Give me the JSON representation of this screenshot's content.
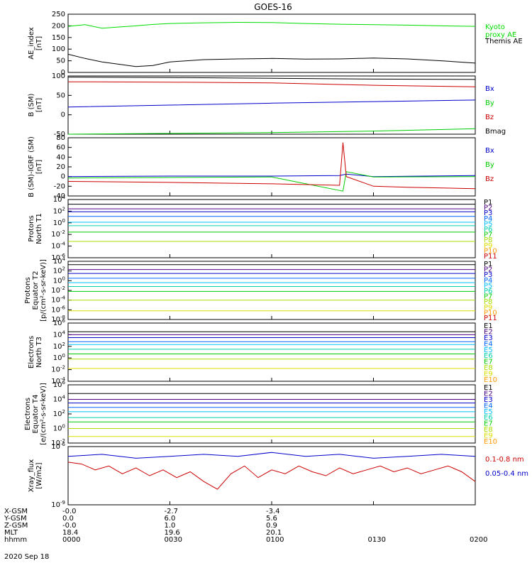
{
  "title": "GOES-16",
  "x_axis": {
    "ticks": [
      "0000",
      "0030",
      "0100",
      "0130",
      "0200"
    ],
    "rows": [
      {
        "label": "X-GSM",
        "values": [
          "-0.0",
          "-2.7",
          "-3.4",
          "",
          ""
        ]
      },
      {
        "label": "Y-GSM",
        "values": [
          "0.0",
          "6.0",
          "5.6",
          "",
          ""
        ]
      },
      {
        "label": "Z-GSM",
        "values": [
          "-0.0",
          "1.0",
          "0.9",
          "",
          ""
        ]
      },
      {
        "label": "MLT",
        "values": [
          "18.4",
          "19.6",
          "20.1",
          "",
          ""
        ]
      },
      {
        "label": "hhmm",
        "values": [
          "0000",
          "0030",
          "0100",
          "0130",
          "0200"
        ]
      }
    ],
    "date": "2020 Sep 18"
  },
  "colors": {
    "green": "#00dd00",
    "black": "#000000",
    "blue": "#0000cc",
    "red": "#cc0000",
    "P": [
      "#000000",
      "#4b0082",
      "#0000cc",
      "#0066ff",
      "#00bfff",
      "#00d0b0",
      "#00cc00",
      "#aadd00",
      "#dddd00",
      "#ff9900",
      "#cc0000",
      "#990000"
    ]
  },
  "chart_data": [
    {
      "type": "line",
      "ylabel": "AE_index\n[nT]",
      "ylim": [
        0,
        250
      ],
      "scale": "linear",
      "yticks": [
        "0",
        "50",
        "100",
        "150",
        "200",
        "250"
      ],
      "legend": [
        {
          "text": "Kyoto\nproxy AE",
          "color": "#00dd00"
        },
        {
          "text": "Themis AE",
          "color": "#000000"
        }
      ],
      "series": [
        {
          "name": "Kyoto proxy AE",
          "color": "#00dd00",
          "x": [
            0,
            5,
            10,
            15,
            20,
            25,
            30,
            40,
            50,
            60,
            70,
            80,
            90,
            100,
            110,
            120
          ],
          "y": [
            198,
            205,
            190,
            195,
            200,
            206,
            210,
            213,
            215,
            214,
            210,
            207,
            205,
            203,
            200,
            198
          ]
        },
        {
          "name": "Themis AE",
          "color": "#000000",
          "x": [
            0,
            5,
            10,
            15,
            20,
            25,
            30,
            40,
            50,
            60,
            70,
            80,
            90,
            100,
            110,
            120
          ],
          "y": [
            78,
            60,
            45,
            35,
            25,
            30,
            45,
            55,
            58,
            60,
            57,
            58,
            62,
            58,
            50,
            40
          ]
        }
      ]
    },
    {
      "type": "line",
      "ylabel": "B (SM)\n[nT]",
      "ylim": [
        -50,
        100
      ],
      "scale": "linear",
      "yticks": [
        "-50",
        "0",
        "50",
        "100"
      ],
      "legend": [
        {
          "text": "Bx",
          "color": "#0000cc"
        },
        {
          "text": "By",
          "color": "#00cc00"
        },
        {
          "text": "Bz",
          "color": "#cc0000"
        },
        {
          "text": "Bmag",
          "color": "#000000"
        }
      ],
      "series": [
        {
          "name": "Bmag",
          "color": "#000000",
          "x": [
            0,
            30,
            60,
            90,
            120
          ],
          "y": [
            97,
            96,
            94,
            92,
            91
          ]
        },
        {
          "name": "Bz",
          "color": "#cc0000",
          "x": [
            0,
            30,
            60,
            90,
            120
          ],
          "y": [
            85,
            84,
            82,
            76,
            72
          ]
        },
        {
          "name": "Bx",
          "color": "#0000cc",
          "x": [
            0,
            30,
            60,
            90,
            120
          ],
          "y": [
            20,
            25,
            30,
            34,
            38
          ]
        },
        {
          "name": "By",
          "color": "#00cc00",
          "x": [
            0,
            30,
            60,
            90,
            120
          ],
          "y": [
            -50,
            -48,
            -46,
            -42,
            -36
          ]
        }
      ]
    },
    {
      "type": "line",
      "ylabel": "B (SM)-IGRF (SM)\n[nT]",
      "ylim": [
        -40,
        80
      ],
      "scale": "linear",
      "yticks": [
        "-40",
        "-20",
        "0",
        "20",
        "40",
        "60",
        "80"
      ],
      "legend": [
        {
          "text": "Bx",
          "color": "#0000cc"
        },
        {
          "text": "By",
          "color": "#00cc00"
        },
        {
          "text": "Bz",
          "color": "#cc0000"
        }
      ],
      "series": [
        {
          "name": "Bx",
          "color": "#0000cc",
          "x": [
            0,
            30,
            60,
            80,
            82,
            90,
            120
          ],
          "y": [
            0,
            1,
            1,
            2,
            5,
            0,
            2
          ]
        },
        {
          "name": "By",
          "color": "#00cc00",
          "x": [
            0,
            30,
            60,
            81,
            82,
            90,
            120
          ],
          "y": [
            -3,
            -2,
            -1,
            -30,
            10,
            -1,
            0
          ]
        },
        {
          "name": "Bz",
          "color": "#cc0000",
          "x": [
            0,
            30,
            60,
            80,
            81,
            82,
            90,
            100,
            120
          ],
          "y": [
            -10,
            -12,
            -15,
            -18,
            70,
            0,
            -20,
            -22,
            -25
          ]
        }
      ]
    },
    {
      "type": "line",
      "ylabel": "Protons\nNorth T1",
      "ylim": [
        -6,
        4
      ],
      "scale": "log",
      "yticks": [
        "10^-6",
        "10^-4",
        "10^-2",
        "10^0",
        "10^2",
        "10^4"
      ],
      "legend": [
        {
          "text": "P1"
        },
        {
          "text": "P2"
        },
        {
          "text": "P3"
        },
        {
          "text": "P4"
        },
        {
          "text": "P5"
        },
        {
          "text": "P6"
        },
        {
          "text": "P7"
        },
        {
          "text": "P8"
        },
        {
          "text": "P9"
        },
        {
          "text": "P10"
        },
        {
          "text": "P11"
        }
      ],
      "series": [
        {
          "name": "P1",
          "y": [
            3.2,
            3.2
          ]
        },
        {
          "name": "P2",
          "y": [
            2.4,
            2.4
          ]
        },
        {
          "name": "P3",
          "y": [
            1.9,
            1.9
          ]
        },
        {
          "name": "P4",
          "y": [
            1.1,
            1.1
          ]
        },
        {
          "name": "P5",
          "y": [
            0.1,
            0.1
          ]
        },
        {
          "name": "P6",
          "y": [
            -0.5,
            -0.5
          ]
        },
        {
          "name": "P7",
          "y": [
            -1.6,
            -1.6
          ]
        },
        {
          "name": "P8",
          "y": [
            -3.2,
            -3.2
          ]
        }
      ]
    },
    {
      "type": "line",
      "ylabel": "Protons\nEquator T2\n[p/(cm²-s-sr-keV)]",
      "ylim": [
        -8,
        4
      ],
      "scale": "log",
      "yticks": [
        "10^-8",
        "10^-6",
        "10^-4",
        "10^-2",
        "10^0",
        "10^2",
        "10^4"
      ],
      "legend": [
        {
          "text": "P1"
        },
        {
          "text": "P2"
        },
        {
          "text": "P3"
        },
        {
          "text": "P4"
        },
        {
          "text": "P5"
        },
        {
          "text": "P6"
        },
        {
          "text": "P7"
        },
        {
          "text": "P8"
        },
        {
          "text": "P9"
        },
        {
          "text": "P10"
        },
        {
          "text": "P11"
        }
      ],
      "series": [
        {
          "name": "P1",
          "y": [
            3.3,
            3.3
          ]
        },
        {
          "name": "P2",
          "y": [
            2.3,
            2.3
          ]
        },
        {
          "name": "P3",
          "y": [
            1.5,
            1.5
          ]
        },
        {
          "name": "P4",
          "y": [
            0.5,
            0.5
          ]
        },
        {
          "name": "P5",
          "y": [
            -0.4,
            -0.4
          ]
        },
        {
          "name": "P6",
          "y": [
            -1.2,
            -1.2
          ]
        },
        {
          "name": "P7",
          "y": [
            -2.2,
            -2.2
          ]
        },
        {
          "name": "P8",
          "y": [
            -4.0,
            -4.0
          ]
        },
        {
          "name": "P11",
          "y": [
            -6.2,
            -6.2
          ]
        }
      ]
    },
    {
      "type": "line",
      "ylabel": "Electrons\nNorth T3",
      "ylim": [
        -4,
        6
      ],
      "scale": "log",
      "yticks": [
        "10^-4",
        "10^-2",
        "10^0",
        "10^2",
        "10^4",
        "10^6"
      ],
      "legend": [
        {
          "text": "E1"
        },
        {
          "text": "E2"
        },
        {
          "text": "E3"
        },
        {
          "text": "E4"
        },
        {
          "text": "E5"
        },
        {
          "text": "E6"
        },
        {
          "text": "E7"
        },
        {
          "text": "E8"
        },
        {
          "text": "E9"
        },
        {
          "text": "E10"
        }
      ],
      "series": [
        {
          "name": "E1",
          "y": [
            4.5,
            4.5
          ]
        },
        {
          "name": "E2",
          "y": [
            4.0,
            4.0
          ]
        },
        {
          "name": "E3",
          "y": [
            3.5,
            3.5
          ]
        },
        {
          "name": "E4",
          "y": [
            2.8,
            2.8
          ]
        },
        {
          "name": "E5",
          "y": [
            2.3,
            2.3
          ]
        },
        {
          "name": "E6",
          "y": [
            1.5,
            1.5
          ]
        },
        {
          "name": "E7",
          "y": [
            0.7,
            0.7
          ]
        },
        {
          "name": "E8",
          "y": [
            -0.2,
            -0.2
          ]
        },
        {
          "name": "E9",
          "y": [
            -1.8,
            -1.8
          ]
        }
      ]
    },
    {
      "type": "line",
      "ylabel": "Electrons\nEquator T4\n[e/(cm²-s-sr-keV)]",
      "ylim": [
        -2,
        6
      ],
      "scale": "log",
      "yticks": [
        "10^-2",
        "10^0",
        "10^2",
        "10^4",
        "10^6"
      ],
      "legend": [
        {
          "text": "E1"
        },
        {
          "text": "E2"
        },
        {
          "text": "E3"
        },
        {
          "text": "E4"
        },
        {
          "text": "E5"
        },
        {
          "text": "E6"
        },
        {
          "text": "E7"
        },
        {
          "text": "E8"
        },
        {
          "text": "E9"
        },
        {
          "text": "E10"
        }
      ],
      "series": [
        {
          "name": "E1",
          "y": [
            4.8,
            4.8
          ]
        },
        {
          "name": "E2",
          "y": [
            4.0,
            4.0
          ]
        },
        {
          "name": "E3",
          "y": [
            3.5,
            3.5
          ]
        },
        {
          "name": "E4",
          "y": [
            2.9,
            2.9
          ]
        },
        {
          "name": "E5",
          "y": [
            2.3,
            2.3
          ]
        },
        {
          "name": "E6",
          "y": [
            1.5,
            1.5
          ]
        },
        {
          "name": "E7",
          "y": [
            0.9,
            0.9
          ]
        },
        {
          "name": "E8",
          "y": [
            0.0,
            0.0
          ]
        },
        {
          "name": "E9",
          "y": [
            -1.1,
            -1.1
          ]
        }
      ]
    },
    {
      "type": "line",
      "ylabel": "Xray_flux\n[W/m2]",
      "ylim": [
        -9,
        -6
      ],
      "scale": "log",
      "yticks": [
        "10^-9",
        "10^-6"
      ],
      "legend": [
        {
          "text": "0.1-0.8 nm",
          "color": "#cc0000"
        },
        {
          "text": "0.05-0.4 nm",
          "color": "#0000cc"
        }
      ],
      "series": [
        {
          "name": "0.1-0.8 nm",
          "color": "#cc0000",
          "x": [
            0,
            4,
            8,
            12,
            16,
            20,
            24,
            28,
            32,
            36,
            40,
            44,
            48,
            52,
            56,
            60,
            64,
            68,
            72,
            76,
            80,
            84,
            88,
            92,
            96,
            100,
            104,
            108,
            112,
            116,
            120
          ],
          "y": [
            -6.8,
            -6.9,
            -7.2,
            -7.0,
            -7.4,
            -7.1,
            -7.5,
            -7.2,
            -7.6,
            -7.3,
            -7.8,
            -8.2,
            -7.4,
            -7.0,
            -7.6,
            -7.2,
            -7.4,
            -7.0,
            -7.3,
            -7.5,
            -7.1,
            -7.4,
            -7.2,
            -7.0,
            -7.3,
            -7.1,
            -7.4,
            -7.2,
            -7.0,
            -7.3,
            -7.8
          ]
        },
        {
          "name": "0.05-0.4 nm",
          "color": "#0000cc",
          "x": [
            0,
            10,
            20,
            30,
            40,
            50,
            60,
            70,
            80,
            90,
            100,
            110,
            120
          ],
          "y": [
            -6.5,
            -6.4,
            -6.6,
            -6.5,
            -6.4,
            -6.5,
            -6.3,
            -6.5,
            -6.4,
            -6.6,
            -6.5,
            -6.4,
            -6.5
          ]
        }
      ]
    }
  ]
}
